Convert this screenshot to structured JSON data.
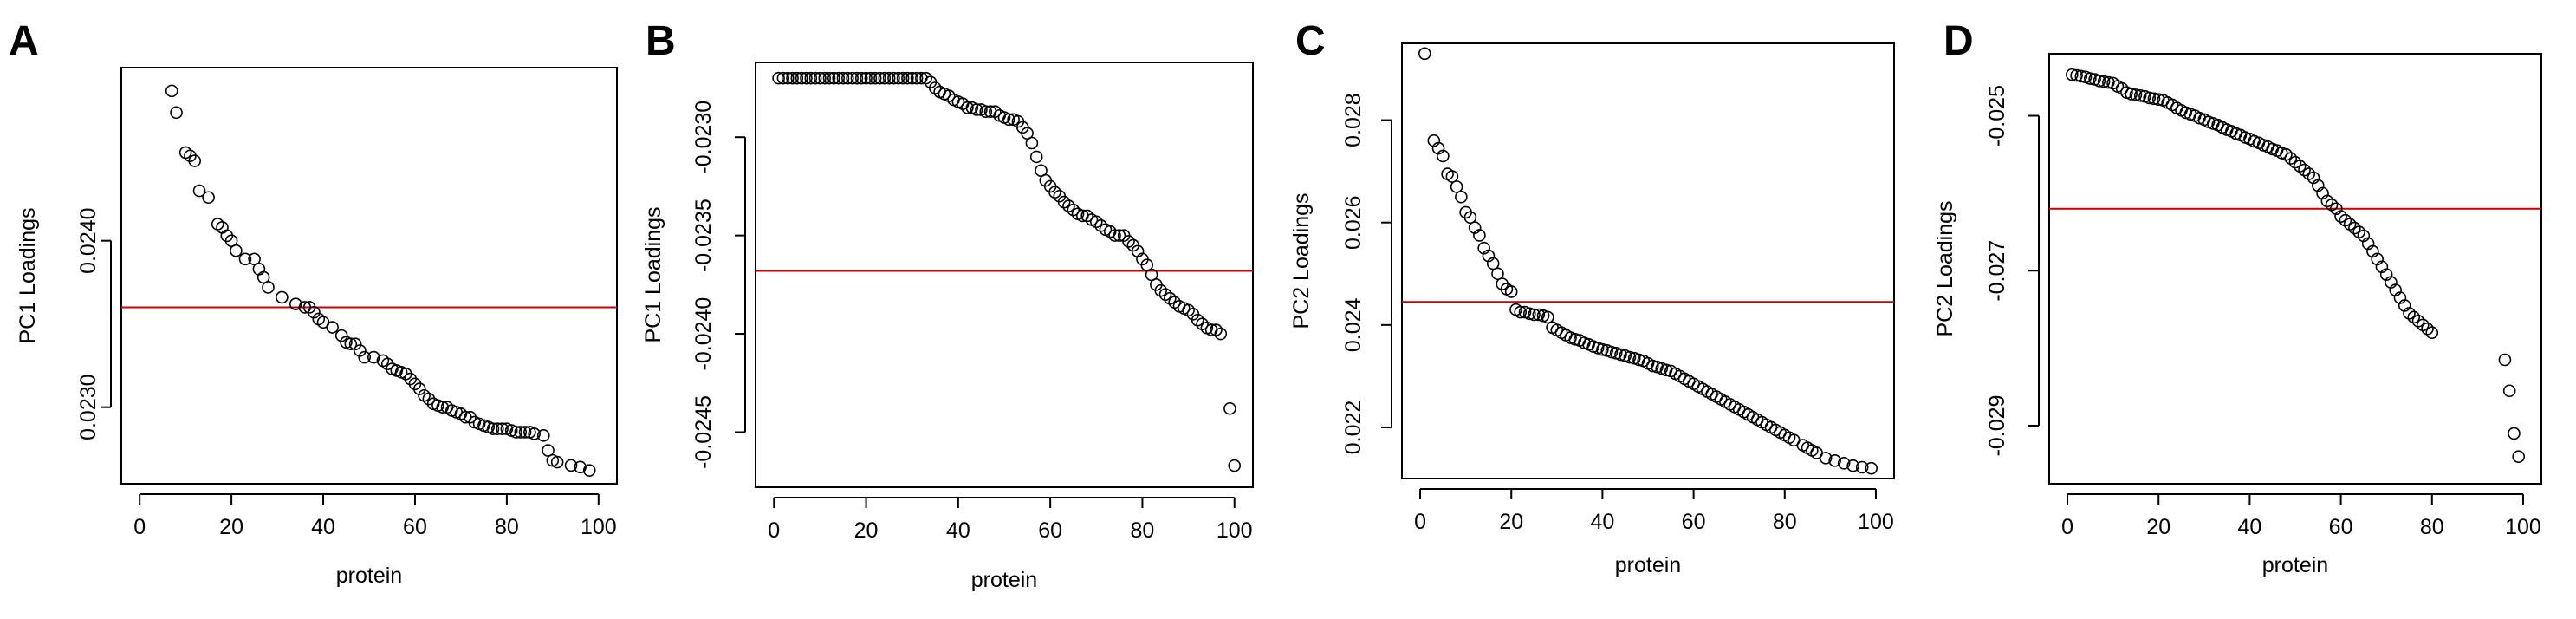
{
  "colors": {
    "points": "#000000",
    "reference_line": "#cc0000",
    "frame": "#000000"
  },
  "chart_data": [
    {
      "panel": "A",
      "type": "scatter",
      "xlabel": "protein",
      "ylabel": "PC1 Loadings",
      "xlim": [
        -4,
        104
      ],
      "ylim": [
        0.02254,
        0.02504
      ],
      "xticks": [
        0,
        20,
        40,
        60,
        80,
        100
      ],
      "xtick_labels": [
        "0",
        "20",
        "40",
        "60",
        "80",
        "100"
      ],
      "yticks": [
        0.023,
        0.024
      ],
      "ytick_labels": [
        "0.0230",
        "0.0240"
      ],
      "reference_line": 0.0236,
      "grid": false,
      "y": [
        0.0249,
        0.02477,
        0.02453,
        0.02451,
        0.02448,
        0.0243,
        0.02426,
        0.0241,
        0.02408,
        0.02403,
        0.024,
        0.02394,
        0.02389,
        0.02389,
        0.02383,
        0.02378,
        0.02372,
        0.02366,
        0.02362,
        0.0236,
        0.0236,
        0.02357,
        0.02353,
        0.02351,
        0.02348,
        0.02343,
        0.02339,
        0.02338,
        0.02338,
        0.02334,
        0.0233,
        0.0233,
        0.02328,
        0.02326,
        0.02323,
        0.02322,
        0.02321,
        0.0232,
        0.02317,
        0.02314,
        0.02311,
        0.02307,
        0.02305,
        0.02302,
        0.02301,
        0.023,
        0.023,
        0.02298,
        0.02297,
        0.02296,
        0.02294,
        0.02294,
        0.02291,
        0.0229,
        0.02289,
        0.02288,
        0.02287,
        0.02287,
        0.02287,
        0.02287,
        0.02286,
        0.02285,
        0.02285,
        0.02285,
        0.02285,
        0.02284,
        0.02283,
        0.02274,
        0.02268,
        0.02267,
        0.02265,
        0.02264,
        0.02262
      ],
      "x": [
        7,
        8,
        10,
        11,
        12,
        13,
        15,
        17,
        18,
        19,
        20,
        21,
        23,
        25,
        26,
        27,
        28,
        31,
        34,
        36,
        37,
        38,
        39,
        40,
        42,
        44,
        45,
        46,
        47,
        48,
        49,
        51,
        53,
        54,
        55,
        56,
        57,
        58,
        59,
        60,
        61,
        62,
        63,
        64,
        65,
        66,
        67,
        68,
        69,
        70,
        71,
        72,
        73,
        74,
        75,
        76,
        77,
        78,
        79,
        80,
        81,
        82,
        83,
        84,
        85,
        86,
        88,
        89,
        90,
        91,
        94,
        96,
        98
      ]
    },
    {
      "panel": "B",
      "type": "scatter",
      "xlabel": "protein",
      "ylabel": "PC1 Loadings",
      "xlim": [
        -4,
        104
      ],
      "ylim": [
        -0.02478,
        -0.02262
      ],
      "xticks": [
        0,
        20,
        40,
        60,
        80,
        100
      ],
      "xtick_labels": [
        "0",
        "20",
        "40",
        "60",
        "80",
        "100"
      ],
      "yticks": [
        -0.023,
        -0.0235,
        -0.024,
        -0.0245
      ],
      "ytick_labels": [
        "-0.0230",
        "-0.0235",
        "-0.0240",
        "-0.0245"
      ],
      "reference_line": -0.02368,
      "grid": false,
      "y": [
        -0.0227,
        -0.0227,
        -0.0227,
        -0.0227,
        -0.0227,
        -0.0227,
        -0.0227,
        -0.0227,
        -0.0227,
        -0.0227,
        -0.0227,
        -0.0227,
        -0.0227,
        -0.0227,
        -0.0227,
        -0.0227,
        -0.0227,
        -0.0227,
        -0.0227,
        -0.0227,
        -0.0227,
        -0.0227,
        -0.0227,
        -0.0227,
        -0.0227,
        -0.0227,
        -0.0227,
        -0.0227,
        -0.0227,
        -0.0227,
        -0.0227,
        -0.0227,
        -0.0227,
        -0.02272,
        -0.02275,
        -0.02277,
        -0.02278,
        -0.02279,
        -0.02281,
        -0.02282,
        -0.02283,
        -0.02285,
        -0.02285,
        -0.02286,
        -0.02286,
        -0.02287,
        -0.02287,
        -0.02287,
        -0.02289,
        -0.0229,
        -0.02291,
        -0.02291,
        -0.02292,
        -0.02295,
        -0.02298,
        -0.02303,
        -0.0231,
        -0.02317,
        -0.02322,
        -0.02325,
        -0.02328,
        -0.0233,
        -0.02333,
        -0.02335,
        -0.02337,
        -0.02339,
        -0.0234,
        -0.0234,
        -0.02342,
        -0.02343,
        -0.02345,
        -0.02347,
        -0.02348,
        -0.0235,
        -0.0235,
        -0.0235,
        -0.02353,
        -0.02355,
        -0.02358,
        -0.02362,
        -0.02365,
        -0.0237,
        -0.02375,
        -0.02378,
        -0.0238,
        -0.02382,
        -0.02384,
        -0.02386,
        -0.02387,
        -0.02388,
        -0.0239,
        -0.02393,
        -0.02395,
        -0.02397,
        -0.02398,
        -0.02398,
        -0.024,
        -0.02438,
        -0.02467
      ],
      "x": [
        1,
        2,
        3,
        4,
        5,
        6,
        7,
        8,
        9,
        10,
        11,
        12,
        13,
        14,
        15,
        16,
        17,
        18,
        19,
        20,
        21,
        22,
        23,
        24,
        25,
        26,
        27,
        28,
        29,
        30,
        31,
        32,
        33,
        34,
        35,
        36,
        37,
        38,
        39,
        40,
        41,
        42,
        43,
        44,
        45,
        46,
        47,
        48,
        49,
        50,
        51,
        52,
        53,
        54,
        55,
        56,
        57,
        58,
        59,
        60,
        61,
        62,
        63,
        64,
        65,
        66,
        67,
        68,
        69,
        70,
        71,
        72,
        73,
        74,
        75,
        76,
        77,
        78,
        79,
        80,
        81,
        82,
        83,
        84,
        85,
        86,
        87,
        88,
        89,
        90,
        91,
        92,
        93,
        94,
        95,
        96,
        97,
        99,
        100
      ]
    },
    {
      "panel": "C",
      "type": "scatter",
      "xlabel": "protein",
      "ylabel": "PC2 Loadings",
      "xlim": [
        -4,
        104
      ],
      "ylim": [
        0.021,
        0.0295
      ],
      "xticks": [
        0,
        20,
        40,
        60,
        80,
        100
      ],
      "xtick_labels": [
        "0",
        "20",
        "40",
        "60",
        "80",
        "100"
      ],
      "yticks": [
        0.022,
        0.024,
        0.026,
        0.028
      ],
      "ytick_labels": [
        "0.022",
        "0.024",
        "0.026",
        "0.028"
      ],
      "reference_line": 0.02445,
      "grid": false,
      "y": [
        0.0293,
        0.0276,
        0.02745,
        0.0273,
        0.02695,
        0.0269,
        0.0267,
        0.0265,
        0.0262,
        0.0261,
        0.0259,
        0.02575,
        0.0255,
        0.02535,
        0.0252,
        0.025,
        0.0248,
        0.0247,
        0.02465,
        0.0243,
        0.02425,
        0.02425,
        0.02422,
        0.0242,
        0.0242,
        0.02418,
        0.02415,
        0.02395,
        0.0239,
        0.02385,
        0.0238,
        0.02375,
        0.02372,
        0.0237,
        0.02365,
        0.02362,
        0.02358,
        0.02355,
        0.02352,
        0.0235,
        0.02347,
        0.02345,
        0.02342,
        0.0234,
        0.02337,
        0.02335,
        0.02332,
        0.0233,
        0.02325,
        0.0232,
        0.02318,
        0.02315,
        0.02312,
        0.0231,
        0.02305,
        0.023,
        0.02295,
        0.0229,
        0.02285,
        0.0228,
        0.02275,
        0.0227,
        0.02265,
        0.0226,
        0.02255,
        0.0225,
        0.02245,
        0.0224,
        0.02235,
        0.0223,
        0.02225,
        0.0222,
        0.02215,
        0.0221,
        0.02205,
        0.022,
        0.02195,
        0.0219,
        0.02185,
        0.0218,
        0.02175,
        0.02165,
        0.0216,
        0.02155,
        0.0215,
        0.0214,
        0.02135,
        0.0213,
        0.02125,
        0.02122,
        0.0212
      ],
      "x": [
        1,
        3,
        4,
        5,
        6,
        7,
        8,
        9,
        10,
        11,
        12,
        13,
        14,
        15,
        16,
        17,
        18,
        19,
        20,
        21,
        22,
        23,
        24,
        25,
        26,
        27,
        28,
        29,
        30,
        31,
        32,
        33,
        34,
        35,
        36,
        37,
        38,
        39,
        40,
        41,
        42,
        43,
        44,
        45,
        46,
        47,
        48,
        49,
        50,
        51,
        52,
        53,
        54,
        55,
        56,
        57,
        58,
        59,
        60,
        61,
        62,
        63,
        64,
        65,
        66,
        67,
        68,
        69,
        70,
        71,
        72,
        73,
        74,
        75,
        76,
        77,
        78,
        79,
        80,
        81,
        82,
        84,
        85,
        86,
        87,
        89,
        91,
        93,
        95,
        97,
        99
      ]
    },
    {
      "panel": "D",
      "type": "scatter",
      "xlabel": "protein",
      "ylabel": "PC2 Loadings",
      "xlim": [
        -4,
        104
      ],
      "ylim": [
        -0.02975,
        -0.0242
      ],
      "xticks": [
        0,
        20,
        40,
        60,
        80,
        100
      ],
      "xtick_labels": [
        "0",
        "20",
        "40",
        "60",
        "80",
        "100"
      ],
      "yticks": [
        -0.025,
        -0.027,
        -0.029
      ],
      "ytick_labels": [
        "-0.025",
        "-0.027",
        "-0.029"
      ],
      "reference_line": -0.0262,
      "grid": false,
      "y": [
        -0.02447,
        -0.02448,
        -0.02449,
        -0.0245,
        -0.02452,
        -0.02453,
        -0.02455,
        -0.02456,
        -0.02457,
        -0.02458,
        -0.02462,
        -0.02465,
        -0.0247,
        -0.02472,
        -0.02473,
        -0.02474,
        -0.02475,
        -0.02477,
        -0.02478,
        -0.02479,
        -0.0248,
        -0.02483,
        -0.02486,
        -0.0249,
        -0.02493,
        -0.02496,
        -0.02498,
        -0.025,
        -0.02503,
        -0.02505,
        -0.02508,
        -0.0251,
        -0.02512,
        -0.02515,
        -0.02518,
        -0.0252,
        -0.02523,
        -0.02525,
        -0.02528,
        -0.0253,
        -0.02533,
        -0.02535,
        -0.02538,
        -0.0254,
        -0.02543,
        -0.02545,
        -0.02548,
        -0.0255,
        -0.02555,
        -0.0256,
        -0.02565,
        -0.0257,
        -0.02575,
        -0.0258,
        -0.0259,
        -0.026,
        -0.0261,
        -0.02615,
        -0.0262,
        -0.0263,
        -0.02635,
        -0.0264,
        -0.02645,
        -0.0265,
        -0.02655,
        -0.02665,
        -0.02675,
        -0.02685,
        -0.02695,
        -0.02705,
        -0.02715,
        -0.02725,
        -0.02735,
        -0.02745,
        -0.02755,
        -0.0276,
        -0.02765,
        -0.0277,
        -0.02775,
        -0.0278,
        -0.02815,
        -0.02855,
        -0.0291,
        -0.0294
      ],
      "x": [
        1,
        2,
        3,
        4,
        5,
        6,
        7,
        8,
        9,
        10,
        11,
        12,
        13,
        14,
        15,
        16,
        17,
        18,
        19,
        20,
        21,
        22,
        23,
        24,
        25,
        26,
        27,
        28,
        29,
        30,
        31,
        32,
        33,
        34,
        35,
        36,
        37,
        38,
        39,
        40,
        41,
        42,
        43,
        44,
        45,
        46,
        47,
        48,
        49,
        50,
        51,
        52,
        53,
        54,
        55,
        56,
        57,
        58,
        59,
        60,
        61,
        62,
        63,
        64,
        65,
        66,
        67,
        68,
        69,
        70,
        71,
        72,
        73,
        74,
        75,
        76,
        77,
        78,
        79,
        80,
        96,
        97,
        98,
        99
      ]
    }
  ]
}
